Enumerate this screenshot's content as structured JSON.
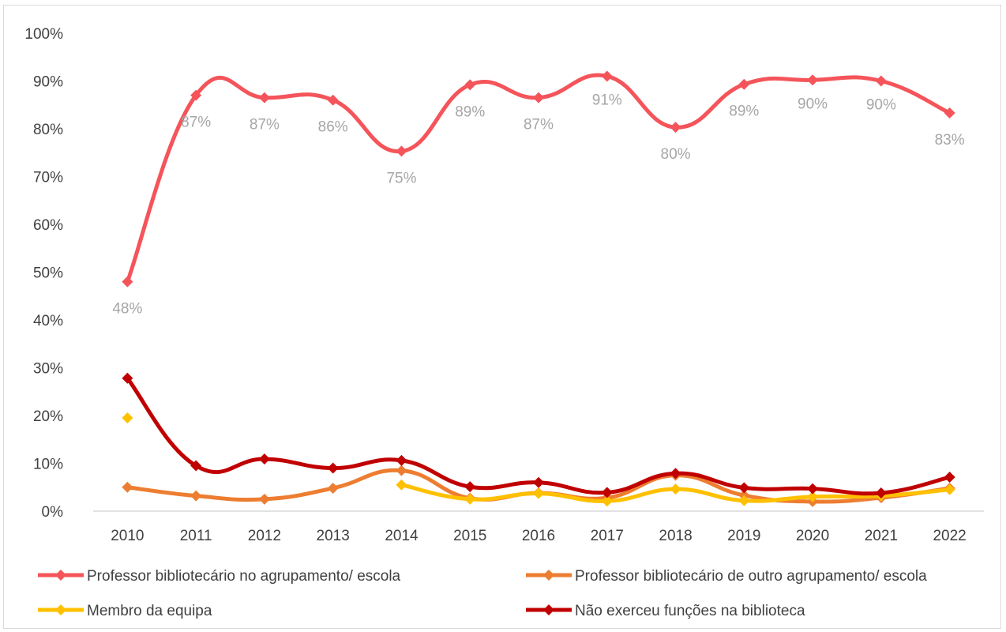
{
  "chart_data": {
    "type": "line",
    "title": "",
    "xlabel": "",
    "ylabel": "",
    "categories": [
      "2010",
      "2011",
      "2012",
      "2013",
      "2014",
      "2015",
      "2016",
      "2017",
      "2018",
      "2019",
      "2020",
      "2021",
      "2022"
    ],
    "y_ticks": [
      "0%",
      "10%",
      "20%",
      "30%",
      "40%",
      "50%",
      "60%",
      "70%",
      "80%",
      "90%",
      "100%"
    ],
    "ylim": [
      0,
      100
    ],
    "y_unit": "%",
    "grid": false,
    "legend_position": "bottom",
    "smooth": true,
    "series": [
      {
        "name": "Professor bibliotecário no agrupamento/ escola",
        "color": "#f4545a",
        "values": [
          48,
          87,
          86.5,
          86,
          75.3,
          89.2,
          86.5,
          91,
          80.3,
          89.3,
          90.2,
          90,
          83.3
        ],
        "data_labels": [
          "48%",
          "87%",
          "87%",
          "86%",
          "75%",
          "89%",
          "87%",
          "91%",
          "80%",
          "89%",
          "90%",
          "90%",
          "83%"
        ],
        "data_label_placement": [
          "below",
          "below",
          "below",
          "below",
          "below",
          "below",
          "below",
          "above",
          "below",
          "below",
          "above",
          "above",
          "below"
        ]
      },
      {
        "name": "Professor bibliotecário de outro agrupamento/ escola",
        "color": "#ed7d31",
        "values": [
          5,
          3.2,
          2.5,
          4.8,
          8.5,
          2.7,
          3.8,
          2.8,
          7.5,
          3.3,
          2,
          2.8,
          4.8
        ]
      },
      {
        "name": "Membro da equipa",
        "color": "#ffc000",
        "values": [
          19.5,
          null,
          null,
          null,
          5.5,
          2.5,
          3.7,
          2.1,
          4.6,
          2.2,
          3,
          3.2,
          4.5
        ]
      },
      {
        "name": "Não exerceu funções na biblioteca",
        "color": "#c00000",
        "values": [
          27.8,
          9.5,
          10.9,
          9,
          10.6,
          5.1,
          6,
          3.9,
          7.9,
          4.9,
          4.7,
          3.8,
          7.1
        ]
      }
    ]
  }
}
